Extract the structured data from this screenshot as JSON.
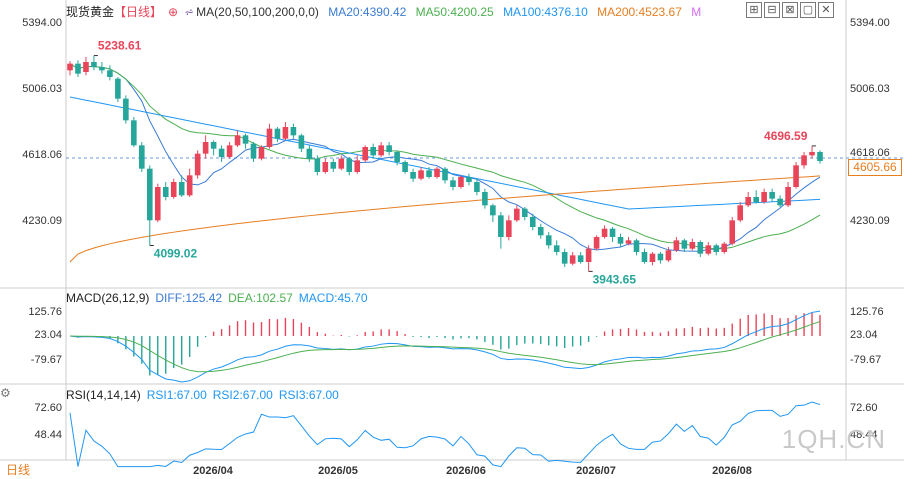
{
  "header": {
    "symbol": "现货黄金",
    "period": "【日线】",
    "ma_label": "MA(20,50,100,200,0,0)",
    "ma20": "MA20:4390.42",
    "ma50": "MA50:4200.25",
    "ma100": "MA100:4376.10",
    "ma200": "MA200:4523.67",
    "m": "M"
  },
  "toolbar": [
    "⊞",
    "⊟",
    "⊠",
    "▢",
    "✕"
  ],
  "colors": {
    "up": "#e8455a",
    "down": "#26a69a",
    "ma20": "#3a7bd5",
    "ma50": "#4caf50",
    "ma100": "#2196f3",
    "ma200": "#e67e22"
  },
  "price_axis": [
    "5394.00",
    "5006.03",
    "4618.06",
    "4230.09"
  ],
  "macd": {
    "label": "MACD(26,12,9)",
    "diff": "DIFF:125.42",
    "dea": "DEA:102.57",
    "macd": "MACD:45.70",
    "axis": [
      "125.76",
      "23.04",
      "-79.67"
    ]
  },
  "rsi": {
    "label": "RSI(14,14,14)",
    "rsi1": "RSI1:67.00",
    "rsi2": "RSI2:67.00",
    "rsi3": "RSI3:67.00",
    "axis": [
      "72.60",
      "48.44"
    ]
  },
  "date_axis": [
    "2026/04",
    "2026/05",
    "2026/06",
    "2026/07",
    "2026/08"
  ],
  "period_label": "日线",
  "watermark": "1QH.CN",
  "current_price": "4605.66",
  "chart_data": {
    "type": "candlestick",
    "title": "现货黄金【日线】",
    "annotations": [
      {
        "label": "5238.61",
        "kind": "high"
      },
      {
        "label": "4099.02",
        "kind": "low"
      },
      {
        "label": "3943.65",
        "kind": "low"
      },
      {
        "label": "4696.59",
        "kind": "high"
      }
    ],
    "y_range": [
      3880,
      5440
    ],
    "reference_line": 4618.06,
    "candles": [
      [
        5150,
        5190,
        5120,
        5205
      ],
      [
        5190,
        5130,
        5110,
        5210
      ],
      [
        5140,
        5200,
        5120,
        5230
      ],
      [
        5200,
        5170,
        5150,
        5238.61
      ],
      [
        5170,
        5150,
        5130,
        5200
      ],
      [
        5150,
        5110,
        5090,
        5180
      ],
      [
        5100,
        4980,
        4960,
        5110
      ],
      [
        4980,
        4850,
        4830,
        5000
      ],
      [
        4850,
        4700,
        4690,
        4870
      ],
      [
        4700,
        4560,
        4540,
        4720
      ],
      [
        4560,
        4250,
        4099.02,
        4580
      ],
      [
        4250,
        4450,
        4240,
        4470
      ],
      [
        4450,
        4390,
        4370,
        4480
      ],
      [
        4390,
        4480,
        4380,
        4500
      ],
      [
        4480,
        4400,
        4390,
        4520
      ],
      [
        4400,
        4520,
        4390,
        4560
      ],
      [
        4520,
        4650,
        4500,
        4670
      ],
      [
        4650,
        4720,
        4620,
        4760
      ],
      [
        4720,
        4680,
        4640,
        4730
      ],
      [
        4680,
        4630,
        4600,
        4700
      ],
      [
        4630,
        4700,
        4620,
        4720
      ],
      [
        4700,
        4760,
        4690,
        4790
      ],
      [
        4760,
        4710,
        4680,
        4770
      ],
      [
        4710,
        4620,
        4600,
        4720
      ],
      [
        4620,
        4690,
        4610,
        4700
      ],
      [
        4690,
        4800,
        4680,
        4830
      ],
      [
        4800,
        4740,
        4720,
        4810
      ],
      [
        4740,
        4810,
        4730,
        4840
      ],
      [
        4810,
        4760,
        4740,
        4830
      ],
      [
        4760,
        4680,
        4660,
        4770
      ],
      [
        4680,
        4620,
        4600,
        4700
      ],
      [
        4620,
        4540,
        4520,
        4640
      ],
      [
        4540,
        4600,
        4530,
        4620
      ],
      [
        4600,
        4560,
        4540,
        4620
      ],
      [
        4560,
        4620,
        4550,
        4640
      ],
      [
        4620,
        4540,
        4520,
        4630
      ],
      [
        4540,
        4610,
        4530,
        4640
      ],
      [
        4610,
        4690,
        4600,
        4700
      ],
      [
        4690,
        4640,
        4620,
        4710
      ],
      [
        4640,
        4700,
        4630,
        4720
      ],
      [
        4700,
        4660,
        4640,
        4720
      ],
      [
        4660,
        4600,
        4580,
        4670
      ],
      [
        4600,
        4540,
        4530,
        4610
      ],
      [
        4540,
        4500,
        4480,
        4560
      ],
      [
        4500,
        4550,
        4490,
        4570
      ],
      [
        4550,
        4510,
        4500,
        4570
      ],
      [
        4510,
        4560,
        4500,
        4570
      ],
      [
        4560,
        4490,
        4470,
        4570
      ],
      [
        4490,
        4450,
        4430,
        4510
      ],
      [
        4450,
        4510,
        4440,
        4520
      ],
      [
        4510,
        4480,
        4460,
        4530
      ],
      [
        4480,
        4420,
        4400,
        4500
      ],
      [
        4420,
        4340,
        4320,
        4440
      ],
      [
        4340,
        4280,
        4240,
        4350
      ],
      [
        4280,
        4150,
        4080,
        4300
      ],
      [
        4150,
        4250,
        4130,
        4280
      ],
      [
        4250,
        4320,
        4240,
        4340
      ],
      [
        4320,
        4270,
        4250,
        4330
      ],
      [
        4270,
        4210,
        4190,
        4290
      ],
      [
        4210,
        4160,
        4140,
        4230
      ],
      [
        4160,
        4100,
        4080,
        4180
      ],
      [
        4100,
        4060,
        4040,
        4130
      ],
      [
        4060,
        3990,
        3970,
        4080
      ],
      [
        3990,
        4040,
        3980,
        4060
      ],
      [
        4040,
        4000,
        3990,
        4060
      ],
      [
        4000,
        4080,
        3943.65,
        4100
      ],
      [
        4080,
        4150,
        4070,
        4160
      ],
      [
        4150,
        4200,
        4140,
        4220
      ],
      [
        4200,
        4150,
        4120,
        4210
      ],
      [
        4150,
        4110,
        4090,
        4170
      ],
      [
        4110,
        4130,
        4100,
        4150
      ],
      [
        4130,
        4060,
        4040,
        4140
      ],
      [
        4060,
        4000,
        3990,
        4080
      ],
      [
        4000,
        4050,
        3980,
        4060
      ],
      [
        4050,
        4010,
        3990,
        4060
      ],
      [
        4010,
        4070,
        4000,
        4090
      ],
      [
        4070,
        4130,
        4060,
        4150
      ],
      [
        4130,
        4080,
        4060,
        4140
      ],
      [
        4080,
        4120,
        4070,
        4140
      ],
      [
        4120,
        4050,
        4030,
        4130
      ],
      [
        4050,
        4100,
        4040,
        4120
      ],
      [
        4100,
        4060,
        4040,
        4110
      ],
      [
        4060,
        4110,
        4050,
        4120
      ],
      [
        4110,
        4250,
        4100,
        4270
      ],
      [
        4250,
        4340,
        4240,
        4360
      ],
      [
        4340,
        4390,
        4330,
        4420
      ],
      [
        4390,
        4360,
        4350,
        4430
      ],
      [
        4360,
        4420,
        4350,
        4440
      ],
      [
        4420,
        4380,
        4360,
        4440
      ],
      [
        4380,
        4340,
        4330,
        4400
      ],
      [
        4340,
        4450,
        4330,
        4480
      ],
      [
        4450,
        4580,
        4440,
        4600
      ],
      [
        4580,
        4640,
        4560,
        4660
      ],
      [
        4640,
        4660,
        4620,
        4696.59
      ],
      [
        4660,
        4605.66,
        4590,
        4670
      ]
    ]
  }
}
